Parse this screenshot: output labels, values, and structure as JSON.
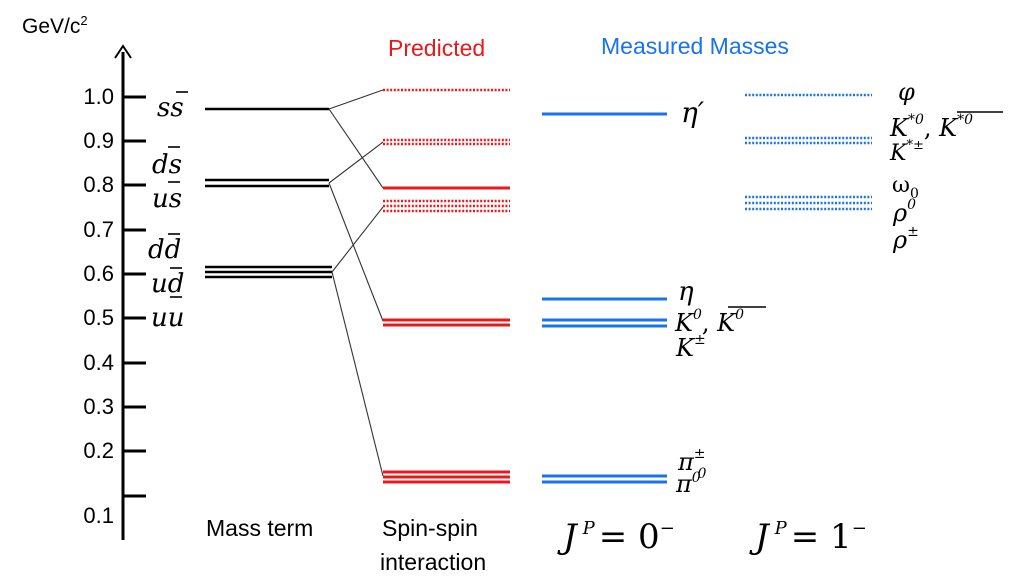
{
  "axis": {
    "unit": "GeV/c",
    "unit_sup": "2",
    "ticks": [
      "1.0",
      "0.9",
      "0.8",
      "0.7",
      "0.6",
      "0.5",
      "0.4",
      "0.3",
      "0.2",
      "0.1"
    ]
  },
  "headers": {
    "predicted": "Predicted",
    "measured": "Measured Masses"
  },
  "colors": {
    "black": "#000000",
    "predicted": "#e8191c",
    "measured": "#1a73e8"
  },
  "quarks": {
    "ss": "ss",
    "ds": "ds",
    "us": "us",
    "dd": "dd",
    "ud": "ud",
    "uu": "uu"
  },
  "pseudoscalar_labels": {
    "eta_prime": "η′",
    "eta": "η",
    "kaon_neutral": "K",
    "kaon_neutral_sup": "0",
    "kaon_sep": ", ",
    "kaon_bar": "K",
    "kaon_bar_sup": "0",
    "kaon_charged": "K",
    "kaon_charged_sup": "±",
    "pion_charged": "π",
    "pion_charged_sup": "±",
    "pion_charged_sub": "0",
    "pion_neutral": "π",
    "pion_neutral_sup": "0"
  },
  "vector_labels": {
    "phi": "φ",
    "kstar_neutral": "K",
    "kstar_neutral_sup": "*0",
    "kstar_sep": ", ",
    "kstar_bar": "K",
    "kstar_bar_sup": "*0",
    "kstar_charged": "K",
    "kstar_charged_sup": "*±",
    "omega": "ω",
    "omega_sub": "0",
    "rho_neutral": "ρ",
    "rho_neutral_sup": "0",
    "rho_charged": "ρ",
    "rho_charged_sup": "±"
  },
  "footer": {
    "mass_term": "Mass term",
    "spin_line1": "Spin-spin",
    "spin_line2": "interaction",
    "jp0_j": "J",
    "jp0_p": "P",
    "jp0_eq": "= 0",
    "jp0_sign": "−",
    "jp1_j": "J",
    "jp1_p": "P",
    "jp1_eq": "= 1",
    "jp1_sign": "−"
  }
}
